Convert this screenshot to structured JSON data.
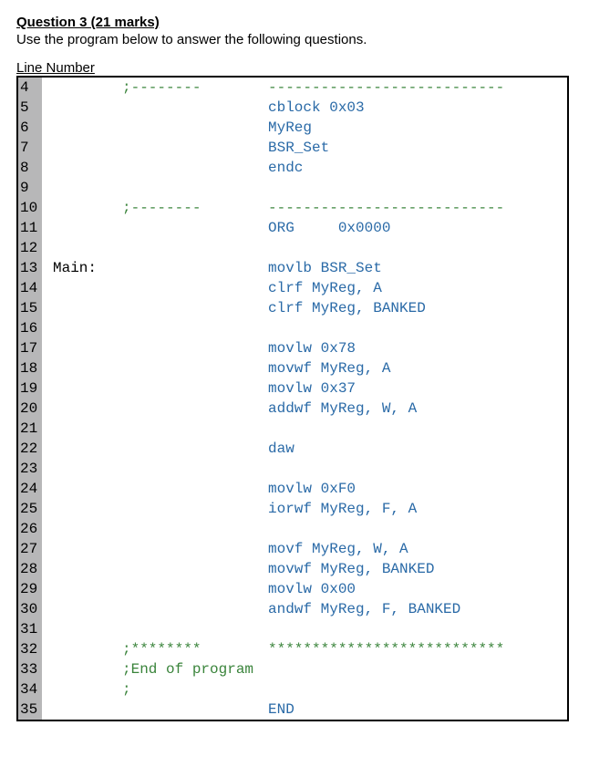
{
  "header": {
    "title": "Question 3 (21 marks)",
    "subtitle": "Use the program below to answer the following questions.",
    "lineNumberLabel": "Line Number"
  },
  "colors": {
    "comment": "#3a843b",
    "keyword": "#2a6aa7",
    "plain": "#000000",
    "gutterBg": "#b7b7b8",
    "codeBg": "#ffffff",
    "border": "#000000"
  },
  "code": {
    "lines": [
      {
        "n": "4",
        "label": "",
        "labelClass": "",
        "mnemonic": ";--------",
        "mnemonicClass": "tk-comment",
        "rest": "---------------------------",
        "restClass": "tk-comment"
      },
      {
        "n": "5",
        "label": "",
        "labelClass": "",
        "mnemonic": "",
        "mnemonicClass": "",
        "rest": "cblock 0x03",
        "restClass": "tk-keyword"
      },
      {
        "n": "6",
        "label": "",
        "labelClass": "",
        "mnemonic": "",
        "mnemonicClass": "",
        "rest": "MyReg",
        "restClass": "tk-keyword"
      },
      {
        "n": "7",
        "label": "",
        "labelClass": "",
        "mnemonic": "",
        "mnemonicClass": "",
        "rest": "BSR_Set",
        "restClass": "tk-keyword"
      },
      {
        "n": "8",
        "label": "",
        "labelClass": "",
        "mnemonic": "",
        "mnemonicClass": "",
        "rest": "endc",
        "restClass": "tk-keyword"
      },
      {
        "n": "9",
        "label": "",
        "labelClass": "",
        "mnemonic": "",
        "mnemonicClass": "",
        "rest": "",
        "restClass": ""
      },
      {
        "n": "10",
        "label": "",
        "labelClass": "",
        "mnemonic": ";--------",
        "mnemonicClass": "tk-comment",
        "rest": "---------------------------",
        "restClass": "tk-comment"
      },
      {
        "n": "11",
        "label": "",
        "labelClass": "",
        "mnemonic": "",
        "mnemonicClass": "",
        "rest": "ORG     0x0000",
        "restClass": "tk-keyword"
      },
      {
        "n": "12",
        "label": "",
        "labelClass": "",
        "mnemonic": "",
        "mnemonicClass": "",
        "rest": "",
        "restClass": ""
      },
      {
        "n": "13",
        "label": "Main:",
        "labelClass": "tk-label",
        "mnemonic": "",
        "mnemonicClass": "",
        "rest": "movlb BSR_Set",
        "restClass": "tk-keyword"
      },
      {
        "n": "14",
        "label": "",
        "labelClass": "",
        "mnemonic": "",
        "mnemonicClass": "",
        "rest": "clrf MyReg, A",
        "restClass": "tk-keyword"
      },
      {
        "n": "15",
        "label": "",
        "labelClass": "",
        "mnemonic": "",
        "mnemonicClass": "",
        "rest": "clrf MyReg, BANKED",
        "restClass": "tk-keyword"
      },
      {
        "n": "16",
        "label": "",
        "labelClass": "",
        "mnemonic": "",
        "mnemonicClass": "",
        "rest": "",
        "restClass": ""
      },
      {
        "n": "17",
        "label": "",
        "labelClass": "",
        "mnemonic": "",
        "mnemonicClass": "",
        "rest": "movlw 0x78",
        "restClass": "tk-keyword"
      },
      {
        "n": "18",
        "label": "",
        "labelClass": "",
        "mnemonic": "",
        "mnemonicClass": "",
        "rest": "movwf MyReg, A",
        "restClass": "tk-keyword"
      },
      {
        "n": "19",
        "label": "",
        "labelClass": "",
        "mnemonic": "",
        "mnemonicClass": "",
        "rest": "movlw 0x37",
        "restClass": "tk-keyword"
      },
      {
        "n": "20",
        "label": "",
        "labelClass": "",
        "mnemonic": "",
        "mnemonicClass": "",
        "rest": "addwf MyReg, W, A",
        "restClass": "tk-keyword"
      },
      {
        "n": "21",
        "label": "",
        "labelClass": "",
        "mnemonic": "",
        "mnemonicClass": "",
        "rest": "",
        "restClass": ""
      },
      {
        "n": "22",
        "label": "",
        "labelClass": "",
        "mnemonic": "",
        "mnemonicClass": "",
        "rest": "daw",
        "restClass": "tk-keyword"
      },
      {
        "n": "23",
        "label": "",
        "labelClass": "",
        "mnemonic": "",
        "mnemonicClass": "",
        "rest": "",
        "restClass": ""
      },
      {
        "n": "24",
        "label": "",
        "labelClass": "",
        "mnemonic": "",
        "mnemonicClass": "",
        "rest": "movlw 0xF0",
        "restClass": "tk-keyword"
      },
      {
        "n": "25",
        "label": "",
        "labelClass": "",
        "mnemonic": "",
        "mnemonicClass": "",
        "rest": "iorwf MyReg, F, A",
        "restClass": "tk-keyword"
      },
      {
        "n": "26",
        "label": "",
        "labelClass": "",
        "mnemonic": "",
        "mnemonicClass": "",
        "rest": "",
        "restClass": ""
      },
      {
        "n": "27",
        "label": "",
        "labelClass": "",
        "mnemonic": "",
        "mnemonicClass": "",
        "rest": "movf MyReg, W, A",
        "restClass": "tk-keyword"
      },
      {
        "n": "28",
        "label": "",
        "labelClass": "",
        "mnemonic": "",
        "mnemonicClass": "",
        "rest": "movwf MyReg, BANKED",
        "restClass": "tk-keyword"
      },
      {
        "n": "29",
        "label": "",
        "labelClass": "",
        "mnemonic": "",
        "mnemonicClass": "",
        "rest": "movlw 0x00",
        "restClass": "tk-keyword"
      },
      {
        "n": "30",
        "label": "",
        "labelClass": "",
        "mnemonic": "",
        "mnemonicClass": "",
        "rest": "andwf MyReg, F, BANKED",
        "restClass": "tk-keyword"
      },
      {
        "n": "31",
        "label": "",
        "labelClass": "",
        "mnemonic": "",
        "mnemonicClass": "",
        "rest": "",
        "restClass": ""
      },
      {
        "n": "32",
        "label": "",
        "labelClass": "",
        "mnemonic": ";********",
        "mnemonicClass": "tk-comment",
        "rest": "***************************",
        "restClass": "tk-comment"
      },
      {
        "n": "33",
        "label": "",
        "labelClass": "",
        "mnemonic": ";End of program",
        "mnemonicClass": "tk-comment",
        "rest": "",
        "restClass": ""
      },
      {
        "n": "34",
        "label": "",
        "labelClass": "",
        "mnemonic": ";",
        "mnemonicClass": "tk-comment",
        "rest": "",
        "restClass": ""
      },
      {
        "n": "35",
        "label": "",
        "labelClass": "",
        "mnemonic": "",
        "mnemonicClass": "",
        "rest": "END",
        "restClass": "tk-keyword"
      }
    ]
  }
}
